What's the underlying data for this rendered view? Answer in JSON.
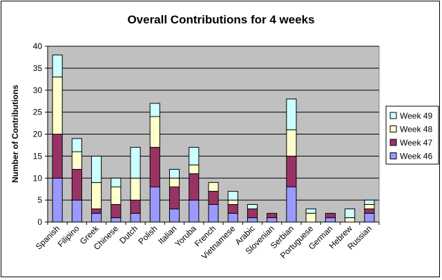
{
  "chart_data": {
    "type": "bar",
    "stacked": true,
    "title": "Overall Contributions for 4 weeks",
    "xlabel": "",
    "ylabel": "Number of Contributions",
    "ylim": [
      0,
      40
    ],
    "yticks": [
      0,
      5,
      10,
      15,
      20,
      25,
      30,
      35,
      40
    ],
    "grid": true,
    "legend_position": "right",
    "categories": [
      "Spanish",
      "Filipino",
      "Greek",
      "Chinese",
      "Dutch",
      "Polish",
      "Italian",
      "Yoruba",
      "French",
      "Vietnamese",
      "Arabic",
      "Slovenian",
      "Serbian",
      "Portuguese",
      "German",
      "Hebrew",
      "Russian"
    ],
    "series": [
      {
        "name": "Week 46",
        "color": "#9999ff",
        "values": [
          10,
          5,
          2,
          1,
          2,
          8,
          3,
          5,
          4,
          2,
          1,
          1,
          8,
          0,
          1,
          0,
          2
        ]
      },
      {
        "name": "Week 47",
        "color": "#993366",
        "values": [
          10,
          7,
          1,
          3,
          3,
          9,
          5,
          6,
          3,
          2,
          2,
          1,
          7,
          0,
          1,
          0,
          1
        ]
      },
      {
        "name": "Week 48",
        "color": "#ffffcc",
        "values": [
          13,
          4,
          6,
          4,
          5,
          7,
          2,
          2,
          2,
          1,
          0,
          0,
          6,
          2,
          0,
          1,
          1
        ]
      },
      {
        "name": "Week 49",
        "color": "#ccffff",
        "values": [
          5,
          3,
          6,
          2,
          7,
          3,
          2,
          4,
          0,
          2,
          1,
          0,
          7,
          1,
          0,
          2,
          1
        ]
      }
    ],
    "plot_background": "#c0c0c0"
  }
}
